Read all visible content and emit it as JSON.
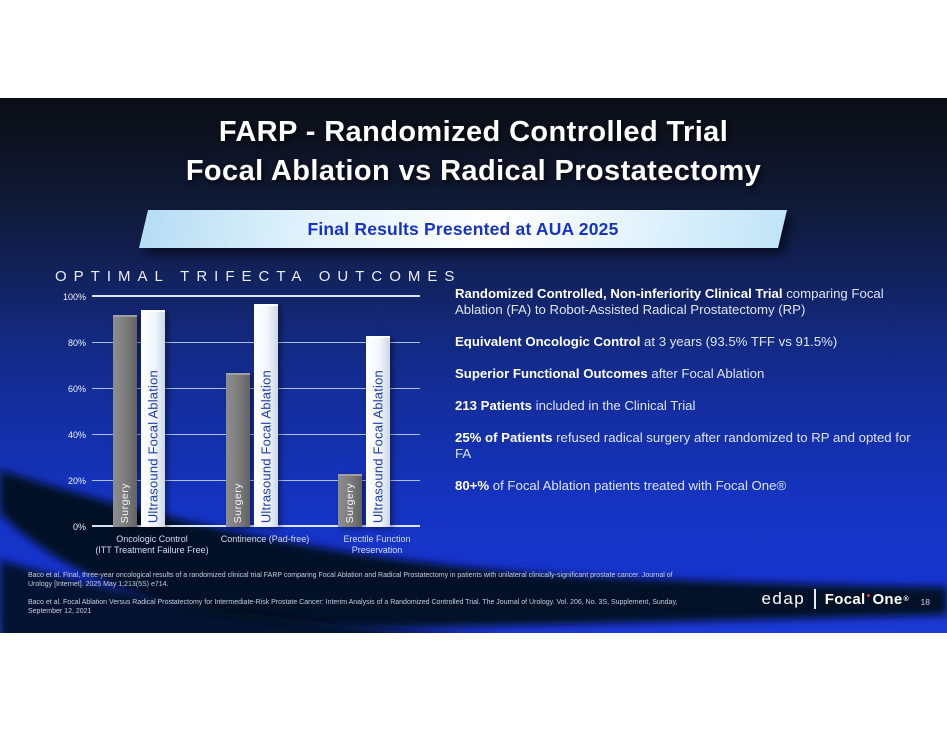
{
  "slide": {
    "title_line1": "FARP - Randomized Controlled Trial",
    "title_line2": "Focal Ablation vs Radical Prostatectomy",
    "banner_label": "Final Results Presented at AUA 2025",
    "page_number": "18",
    "logo": {
      "brand_left": "edap",
      "brand_word1": "Focal",
      "brand_word2": "One",
      "registered": "®"
    }
  },
  "chart_data": {
    "type": "bar",
    "title": "OPTIMAL TRIFECTA OUTCOMES",
    "categories": [
      [
        "Oncologic Control",
        "(ITT Treatment Failure Free)"
      ],
      [
        "Continence (Pad-free)"
      ],
      [
        "Erectile Function",
        "Preservation"
      ]
    ],
    "series": [
      {
        "name": "Surgery",
        "values": [
          91.5,
          66,
          22
        ],
        "bar_color": "#7d7d7d",
        "label_color": "#f3f4f6"
      },
      {
        "name": "Ultrasound Focal Ablation",
        "values": [
          93.5,
          96,
          82
        ],
        "bar_color": "#f1f6fb",
        "label_color": "#1d3dae"
      }
    ],
    "ylim": [
      0,
      100
    ],
    "yticks": [
      "0%",
      "20%",
      "40%",
      "60%",
      "80%",
      "100%"
    ],
    "grid": true,
    "legend": "series names printed vertically inside bars"
  },
  "bullets": [
    {
      "segments": [
        {
          "t": "Randomized Controlled, Non-inferiority Clinical Trial",
          "b": true
        },
        {
          "t": " comparing Focal Ablation (FA) to Robot-Assisted Radical Prostatectomy (RP)",
          "b": false
        }
      ]
    },
    {
      "segments": [
        {
          "t": "Equivalent Oncologic Control",
          "b": true
        },
        {
          "t": " at 3 years (93.5% TFF vs 91.5%)",
          "b": false
        }
      ]
    },
    {
      "segments": [
        {
          "t": "Superior Functional Outcomes",
          "b": true
        },
        {
          "t": " after Focal Ablation",
          "b": false
        }
      ]
    },
    {
      "segments": [
        {
          "t": "213 Patients",
          "b": true
        },
        {
          "t": " included in the Clinical Trial",
          "b": false
        }
      ]
    },
    {
      "segments": [
        {
          "t": "25% of Patients",
          "b": true
        },
        {
          "t": " refused radical surgery after randomized to RP and opted for FA",
          "b": false
        }
      ]
    },
    {
      "segments": [
        {
          "t": "80+%",
          "b": true
        },
        {
          "t": " of Focal Ablation patients treated with Focal One®",
          "b": false
        }
      ]
    }
  ],
  "citations": [
    "Baco et al. Final, three-year oncological results of a randomized clinical trial FARP comparing Focal Ablation and Radical Prostatectomy in patients with unilateral clinically-significant prostate cancer. Journal of Urology [Internet]. 2025 May 1;213(5S) e714.",
    "Baco et al. Focal Ablation Versus Radical Prostatectomy for Intermediate-Risk Prostate Cancer: Interim Analysis of a Randomized Controlled Trial. The Journal of Urology. Vol. 206, No. 3S, Supplement, Sunday, September 12, 2021"
  ],
  "colors": {
    "slide_bottom_blue": "#1634cd",
    "swoosh_dark": "#060a16",
    "banner_text_blue": "#1733c4",
    "bar_gray": "#7d7d7d",
    "bar_white": "#f1f6fb",
    "fa_label_blue": "#1d3dae",
    "logo_dot_red": "#e8392e"
  }
}
